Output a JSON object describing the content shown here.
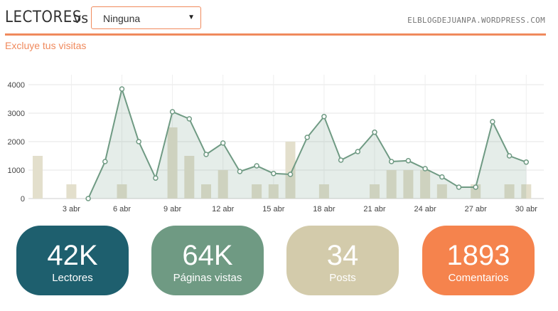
{
  "header": {
    "title": "LECTORES",
    "vs": "vs",
    "compare_select": {
      "value": "Ninguna"
    },
    "blog_url": "ELBLOGDEJUANPA.WORDPRESS.COM",
    "exclude_link": "Excluye tus visitas"
  },
  "chart_data": {
    "type": "line",
    "x": [
      1,
      2,
      3,
      4,
      5,
      6,
      7,
      8,
      9,
      10,
      11,
      12,
      13,
      14,
      15,
      16,
      17,
      18,
      19,
      20,
      21,
      22,
      23,
      24,
      25,
      26,
      27,
      28,
      29,
      30
    ],
    "xtick_values": [
      3,
      6,
      9,
      12,
      15,
      18,
      21,
      24,
      27,
      30
    ],
    "xtick_labels": [
      "3 abr",
      "6 abr",
      "9 abr",
      "12 abr",
      "15 abr",
      "18 abr",
      "21 abr",
      "24 abr",
      "27 abr",
      "30 abr"
    ],
    "yticks": [
      0,
      1000,
      2000,
      3000,
      4000
    ],
    "ylim": [
      0,
      4200
    ],
    "grid": true,
    "series": [
      {
        "values": [
          null,
          null,
          null,
          0,
          1300,
          3850,
          2000,
          720,
          3050,
          2800,
          1550,
          1950,
          950,
          1150,
          880,
          850,
          2150,
          2880,
          1350,
          1650,
          2330,
          1300,
          1330,
          1050,
          760,
          400,
          400,
          2700,
          1500,
          1280
        ],
        "color": "#6f9a83"
      },
      {
        "type": "bar",
        "values": [
          1500,
          0,
          500,
          0,
          0,
          500,
          0,
          0,
          2500,
          1500,
          500,
          1000,
          0,
          500,
          500,
          2000,
          0,
          500,
          0,
          0,
          500,
          1000,
          1000,
          1000,
          500,
          0,
          500,
          0,
          500,
          500
        ],
        "color": "#e3dfcc"
      }
    ]
  },
  "stats": [
    {
      "value": "42K",
      "label": "Lectores",
      "color": "#1e5f6e"
    },
    {
      "value": "64K",
      "label": "Páginas vistas",
      "color": "#6f9a83"
    },
    {
      "value": "34",
      "label": "Posts",
      "color": "#d3cbab"
    },
    {
      "value": "1893",
      "label": "Comentarios",
      "color": "#f5834d"
    }
  ]
}
